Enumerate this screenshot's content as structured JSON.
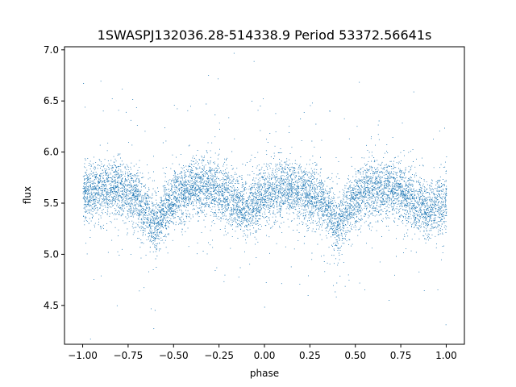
{
  "chart_data": {
    "type": "scatter",
    "title": "1SWASPJ132036.28-514338.9 Period 53372.56641s",
    "xlabel": "phase",
    "ylabel": "flux",
    "xlim": [
      -1.1,
      1.1
    ],
    "ylim": [
      4.12,
      7.03
    ],
    "xticks": [
      -1.0,
      -0.75,
      -0.5,
      -0.25,
      0.0,
      0.25,
      0.5,
      0.75,
      1.0
    ],
    "xtick_labels": [
      "−1.00",
      "−0.75",
      "−0.50",
      "−0.25",
      "0.00",
      "0.25",
      "0.50",
      "0.75",
      "1.00"
    ],
    "yticks": [
      4.5,
      5.0,
      5.5,
      6.0,
      6.5,
      7.0
    ],
    "ytick_labels": [
      "4.5",
      "5.0",
      "5.5",
      "6.0",
      "6.5",
      "7.0"
    ],
    "grid": false,
    "legend": "none",
    "marker_color": "#1f77b4",
    "series": [
      {
        "description_points": "phase-folded light curve, two cycles shown",
        "mean_profile": {
          "x": [
            -1.0,
            -0.9,
            -0.8,
            -0.7,
            -0.6,
            -0.5,
            -0.4,
            -0.3,
            -0.2,
            -0.1,
            0.0,
            0.1,
            0.2,
            0.3,
            0.4,
            0.5,
            0.6,
            0.7,
            0.8,
            0.9,
            1.0
          ],
          "y": [
            5.58,
            5.63,
            5.66,
            5.55,
            5.28,
            5.55,
            5.64,
            5.66,
            5.55,
            5.42,
            5.58,
            5.65,
            5.62,
            5.55,
            5.28,
            5.55,
            5.64,
            5.66,
            5.55,
            5.42,
            5.5
          ]
        }
      }
    ]
  }
}
